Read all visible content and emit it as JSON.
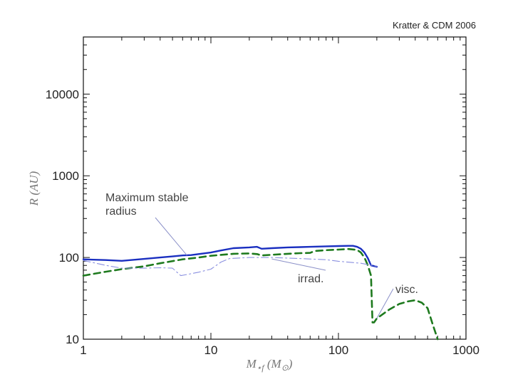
{
  "credit": "Kratter & CDM 2006",
  "chart_data": {
    "type": "line",
    "title": "",
    "xlabel": "M⋆f (M⊙)",
    "ylabel": "R (AU)",
    "xscale": "log",
    "yscale": "log",
    "xlim": [
      1,
      1000
    ],
    "ylim": [
      10,
      50000
    ],
    "x_ticks": [
      1,
      10,
      100,
      1000
    ],
    "x_tick_labels": [
      "1",
      "10",
      "100",
      "1000"
    ],
    "y_ticks": [
      10,
      100,
      1000,
      10000
    ],
    "y_tick_labels": [
      "10",
      "100",
      "1000",
      "10000"
    ],
    "grid": false,
    "series": [
      {
        "name": "Maximum stable radius",
        "style": "solid",
        "color": "#1a2fc0",
        "x": [
          1,
          1.5,
          2,
          3,
          4,
          5,
          6,
          7,
          8,
          10,
          12,
          15,
          20,
          23,
          25,
          30,
          40,
          50,
          60,
          80,
          100,
          120,
          130,
          140,
          150,
          160,
          170,
          180,
          200
        ],
        "y": [
          95,
          93,
          91,
          96,
          100,
          103,
          106,
          107,
          110,
          115,
          122,
          130,
          133,
          135,
          128,
          130,
          133,
          134,
          135,
          137,
          138,
          139,
          139,
          135,
          128,
          115,
          98,
          80,
          77
        ]
      },
      {
        "name": "visc.",
        "style": "dashed",
        "color": "#1e7a1e",
        "x": [
          1,
          1.5,
          2,
          3,
          4,
          6,
          8,
          10,
          15,
          20,
          23,
          25,
          30,
          40,
          50,
          60,
          65,
          80,
          100,
          120,
          140,
          150,
          160,
          170,
          180,
          185,
          190,
          200,
          250,
          300,
          350,
          400,
          450,
          500,
          550,
          600
        ],
        "y": [
          60,
          67,
          72,
          78,
          85,
          95,
          100,
          105,
          111,
          112,
          110,
          106,
          108,
          111,
          113,
          114,
          120,
          123,
          125,
          127,
          124,
          115,
          100,
          80,
          60,
          16,
          16,
          18,
          23,
          27,
          29,
          30,
          28,
          24,
          15,
          10
        ]
      },
      {
        "name": "irrad.",
        "style": "dash-dot",
        "color": "#8a90e0",
        "x": [
          1,
          1.5,
          2,
          3,
          4,
          5,
          5.8,
          6.5,
          8,
          10,
          12,
          14,
          20,
          30,
          50,
          80,
          100,
          150,
          200
        ],
        "y": [
          92,
          80,
          74,
          74,
          75,
          74,
          60,
          62,
          66,
          72,
          88,
          97,
          100,
          100,
          97,
          94,
          90,
          85,
          78
        ]
      }
    ],
    "annotations": [
      {
        "text": "Maximum stable",
        "points_to": "Maximum stable radius"
      },
      {
        "text": "radius",
        "points_to": "Maximum stable radius"
      },
      {
        "text": "irrad.",
        "points_to": "irrad."
      },
      {
        "text": "visc.",
        "points_to": "visc."
      }
    ]
  }
}
